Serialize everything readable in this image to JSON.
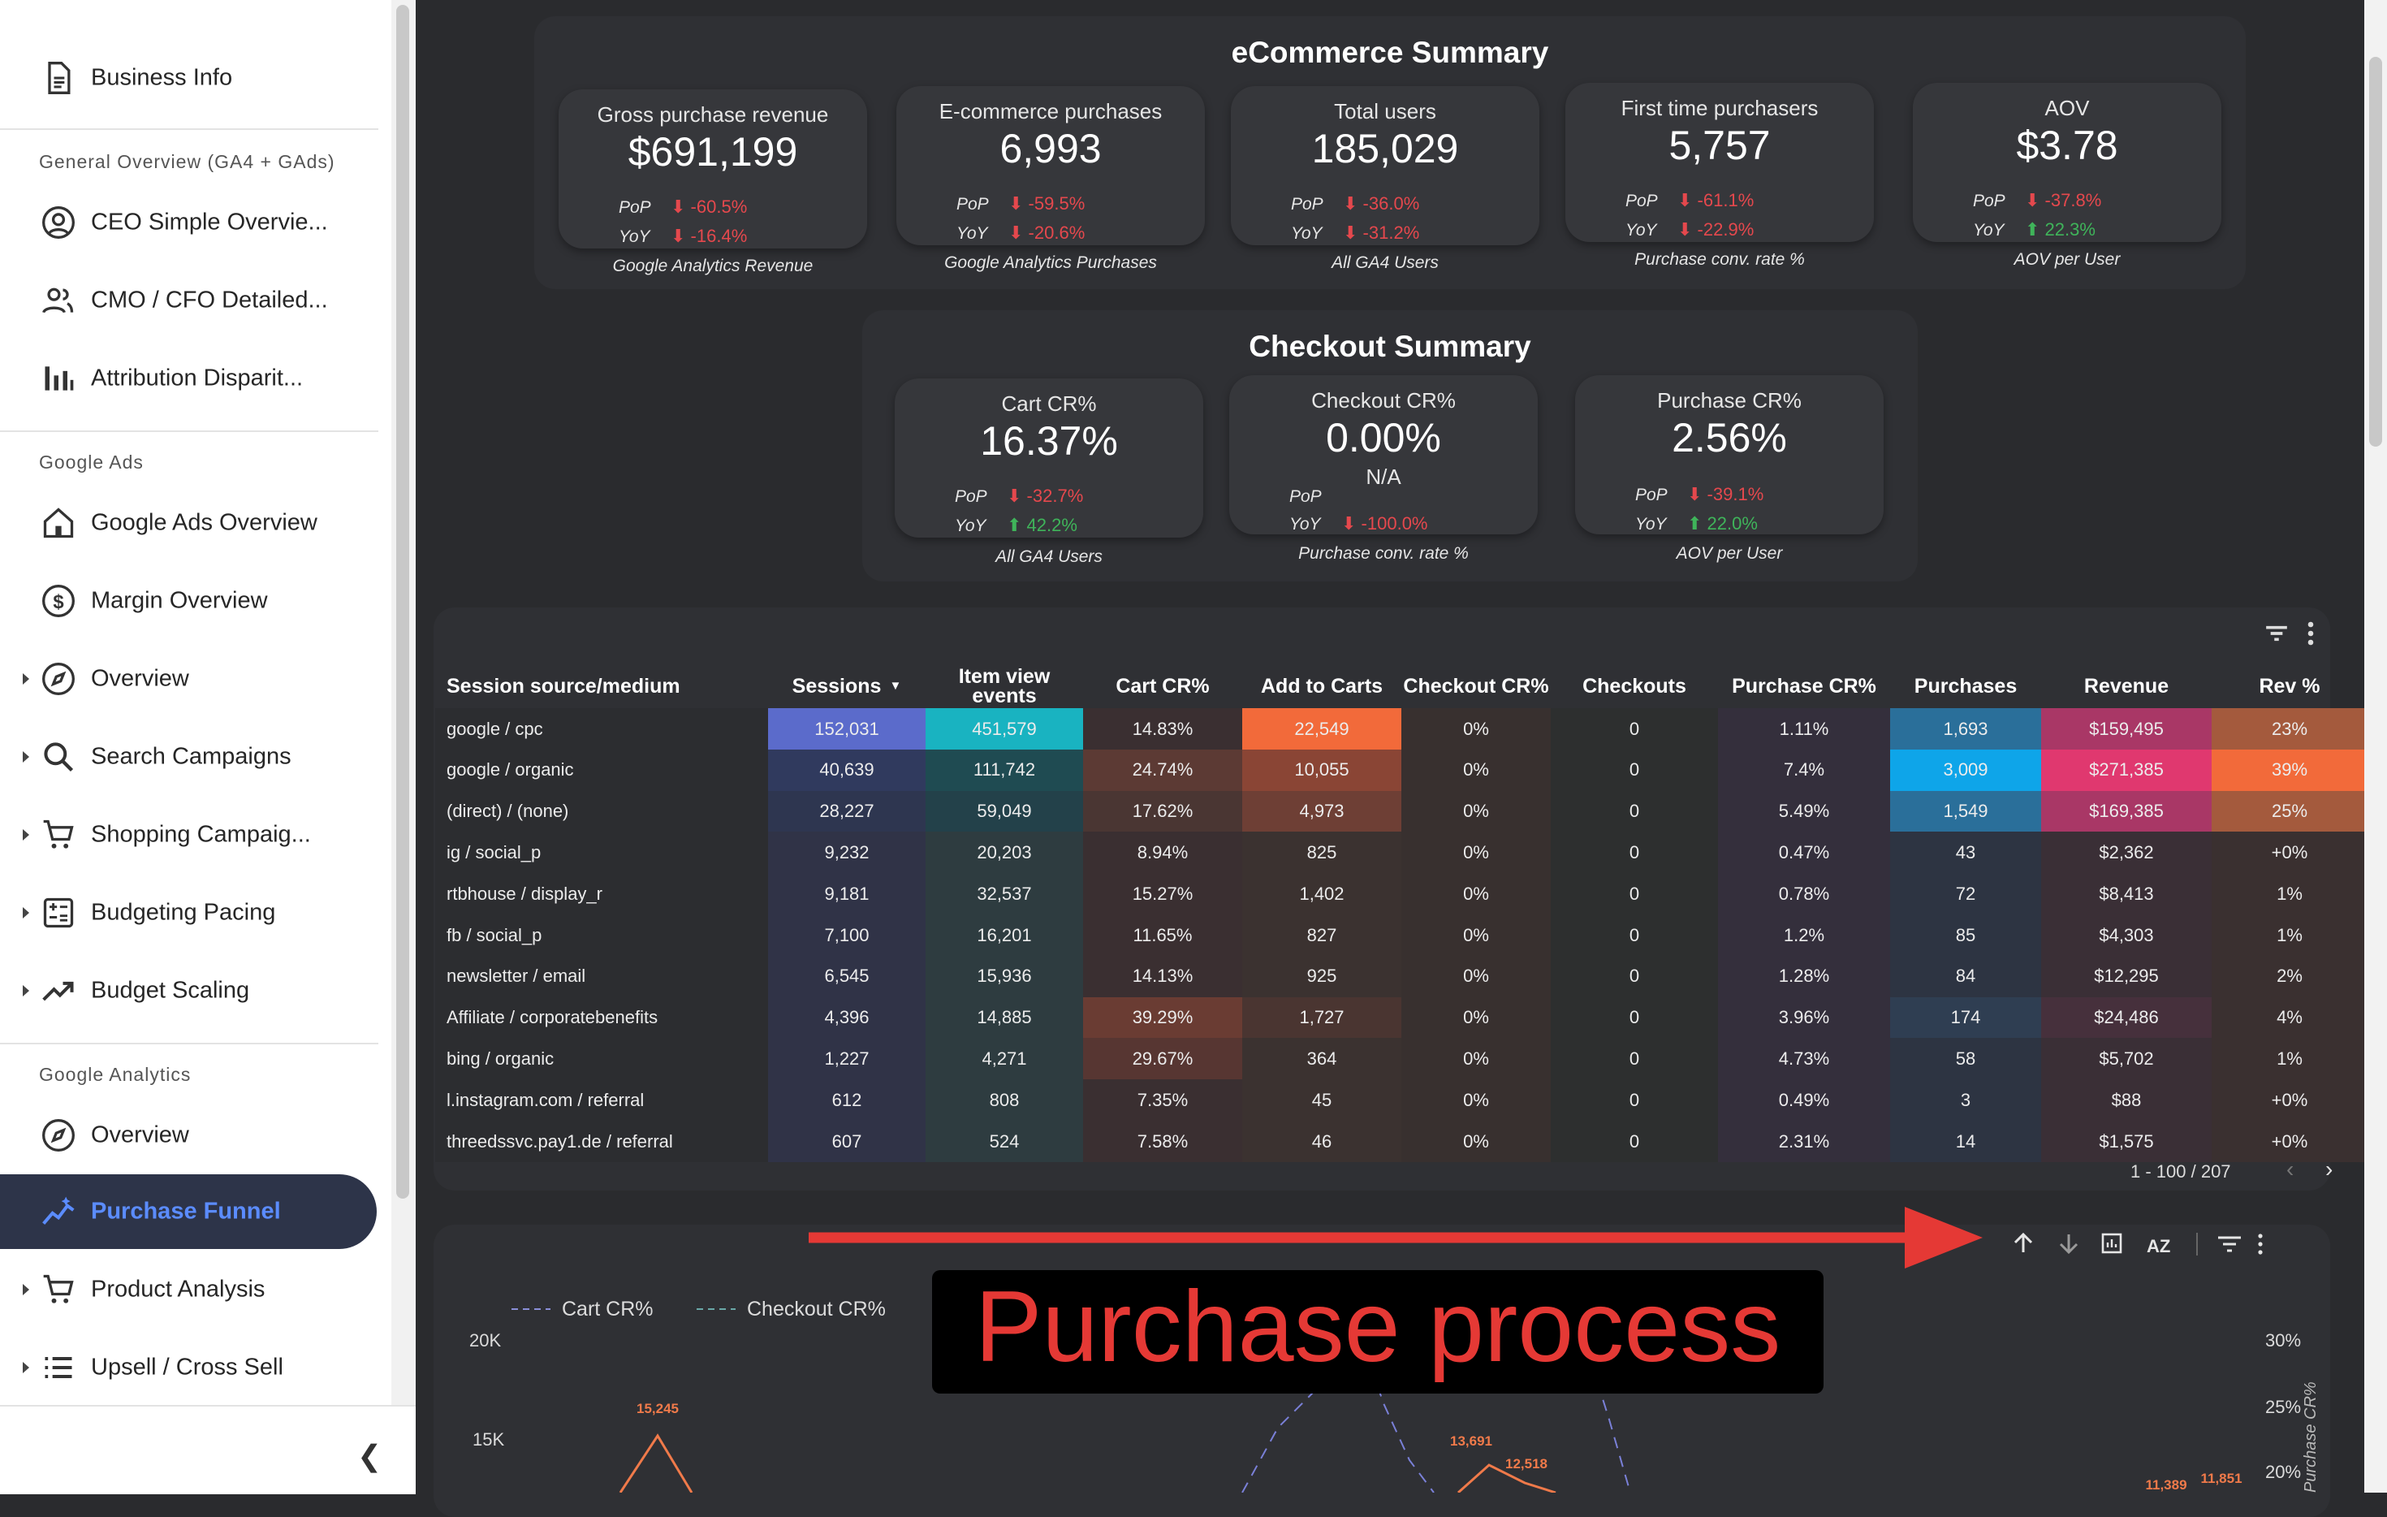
{
  "sidebar": {
    "items": [
      {
        "label": "Business Info",
        "icon": "document-icon",
        "caret": false,
        "active": false
      },
      {
        "label": "CEO Simple Overvie...",
        "icon": "user-circle-icon",
        "caret": false,
        "active": false
      },
      {
        "label": "CMO / CFO Detailed...",
        "icon": "users-icon",
        "caret": false,
        "active": false
      },
      {
        "label": "Attribution Disparit...",
        "icon": "bar-chart-icon",
        "caret": false,
        "active": false
      },
      {
        "label": "Google Ads Overview",
        "icon": "home-icon",
        "caret": false,
        "active": false
      },
      {
        "label": "Margin Overview",
        "icon": "dollar-icon",
        "caret": false,
        "active": false
      },
      {
        "label": "Overview",
        "icon": "compass-icon",
        "caret": true,
        "active": false
      },
      {
        "label": "Search Campaigns",
        "icon": "search-icon",
        "caret": true,
        "active": false
      },
      {
        "label": "Shopping Campaig...",
        "icon": "cart-icon",
        "caret": true,
        "active": false
      },
      {
        "label": "Budgeting Pacing",
        "icon": "calculator-icon",
        "caret": true,
        "active": false
      },
      {
        "label": "Budget Scaling",
        "icon": "trend-up-icon",
        "caret": true,
        "active": false
      },
      {
        "label": "Overview",
        "icon": "compass-icon",
        "caret": false,
        "active": false
      },
      {
        "label": "Purchase Funnel",
        "icon": "sparkline-icon",
        "caret": false,
        "active": true
      },
      {
        "label": "Product Analysis",
        "icon": "cart-icon",
        "caret": true,
        "active": false
      },
      {
        "label": "Upsell / Cross Sell",
        "icon": "list-icon",
        "caret": true,
        "active": false
      }
    ],
    "sections": [
      "General Overview (GA4 + GAds)",
      "Google Ads",
      "Google Analytics"
    ],
    "collapse_icon": "chevron-left-icon"
  },
  "ecommerce": {
    "title": "eCommerce Summary",
    "kpis": [
      {
        "title": "Gross purchase revenue",
        "value": "$691,199",
        "pop": "-60.5%",
        "pop_dir": "down",
        "yoy": "-16.4%",
        "yoy_dir": "down",
        "caption": "Google Analytics Revenue"
      },
      {
        "title": "E-commerce purchases",
        "value": "6,993",
        "pop": "-59.5%",
        "pop_dir": "down",
        "yoy": "-20.6%",
        "yoy_dir": "down",
        "caption": "Google Analytics Purchases"
      },
      {
        "title": "Total users",
        "value": "185,029",
        "pop": "-36.0%",
        "pop_dir": "down",
        "yoy": "-31.2%",
        "yoy_dir": "down",
        "caption": "All GA4 Users"
      },
      {
        "title": "First time purchasers",
        "value": "5,757",
        "pop": "-61.1%",
        "pop_dir": "down",
        "yoy": "-22.9%",
        "yoy_dir": "down",
        "caption": "Purchase conv. rate %"
      },
      {
        "title": "AOV",
        "value": "$3.78",
        "pop": "-37.8%",
        "pop_dir": "down",
        "yoy": "22.3%",
        "yoy_dir": "up",
        "caption": "AOV per User"
      }
    ]
  },
  "checkout": {
    "title": "Checkout Summary",
    "kpis": [
      {
        "title": "Cart CR%",
        "value": "16.37%",
        "pop": "-32.7%",
        "pop_dir": "down",
        "yoy": "42.2%",
        "yoy_dir": "up",
        "caption": "All GA4 Users",
        "na": ""
      },
      {
        "title": "Checkout CR%",
        "value": "0.00%",
        "pop": "",
        "pop_dir": "none",
        "yoy": "-100.0%",
        "yoy_dir": "down",
        "caption": "Purchase conv. rate %",
        "na": "N/A"
      },
      {
        "title": "Purchase CR%",
        "value": "2.56%",
        "pop": "-39.1%",
        "pop_dir": "down",
        "yoy": "22.0%",
        "yoy_dir": "up",
        "caption": "AOV per User",
        "na": ""
      }
    ]
  },
  "labels": {
    "pop": "PoP",
    "yoy": "YoY"
  },
  "table": {
    "columns": [
      "Session source/medium",
      "Sessions",
      "Item view events",
      "Cart CR%",
      "Add to Carts",
      "Checkout CR%",
      "Checkouts",
      "Purchase CR%",
      "Purchases",
      "Revenue",
      "Rev %"
    ],
    "sort_indicator": "▼",
    "rows": [
      [
        "google / cpc",
        "152,031",
        "451,579",
        "14.83%",
        "22,549",
        "0%",
        "0",
        "1.11%",
        "1,693",
        "$159,495",
        "23%"
      ],
      [
        "google / organic",
        "40,639",
        "111,742",
        "24.74%",
        "10,055",
        "0%",
        "0",
        "7.4%",
        "3,009",
        "$271,385",
        "39%"
      ],
      [
        "(direct) / (none)",
        "28,227",
        "59,049",
        "17.62%",
        "4,973",
        "0%",
        "0",
        "5.49%",
        "1,549",
        "$169,385",
        "25%"
      ],
      [
        "ig / social_p",
        "9,232",
        "20,203",
        "8.94%",
        "825",
        "0%",
        "0",
        "0.47%",
        "43",
        "$2,362",
        "+0%"
      ],
      [
        "rtbhouse / display_r",
        "9,181",
        "32,537",
        "15.27%",
        "1,402",
        "0%",
        "0",
        "0.78%",
        "72",
        "$8,413",
        "1%"
      ],
      [
        "fb / social_p",
        "7,100",
        "16,201",
        "11.65%",
        "827",
        "0%",
        "0",
        "1.2%",
        "85",
        "$4,303",
        "1%"
      ],
      [
        "newsletter / email",
        "6,545",
        "15,936",
        "14.13%",
        "925",
        "0%",
        "0",
        "1.28%",
        "84",
        "$12,295",
        "2%"
      ],
      [
        "Affiliate / corporatebenefits",
        "4,396",
        "14,885",
        "39.29%",
        "1,727",
        "0%",
        "0",
        "3.96%",
        "174",
        "$24,486",
        "4%"
      ],
      [
        "bing / organic",
        "1,227",
        "4,271",
        "29.67%",
        "364",
        "0%",
        "0",
        "4.73%",
        "58",
        "$5,702",
        "1%"
      ],
      [
        "l.instagram.com / referral",
        "612",
        "808",
        "7.35%",
        "45",
        "0%",
        "0",
        "0.49%",
        "3",
        "$88",
        "+0%"
      ],
      [
        "threedssvc.pay1.de / referral",
        "607",
        "524",
        "7.58%",
        "46",
        "0%",
        "0",
        "2.31%",
        "14",
        "$1,575",
        "+0%"
      ]
    ],
    "pager": "1 - 100 / 207"
  },
  "chart": {
    "legend": [
      "Cart CR%",
      "Checkout CR%"
    ],
    "left_ticks": [
      "20K",
      "15K"
    ],
    "right_ticks": [
      "30%",
      "25%",
      "20%"
    ],
    "right_axis_label": "Purchase CR%",
    "point_labels": [
      "15,245",
      "13,691",
      "12,518",
      "11,389",
      "11,851"
    ],
    "toolbar_icons": [
      "arrow-up-icon",
      "arrow-down-icon",
      "drill-icon",
      "sort-az-icon",
      "filter-icon",
      "more-icon"
    ]
  },
  "overlay": {
    "text": "Purchase process",
    "arrow_color": "#e53935",
    "text_color": "#e53935"
  }
}
